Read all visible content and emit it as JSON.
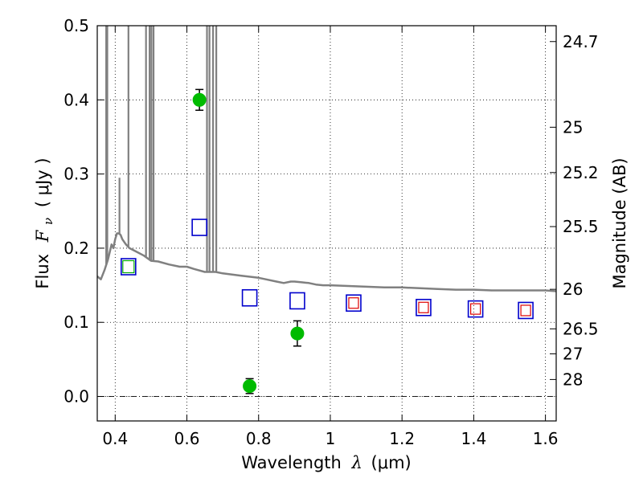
{
  "chart_data": {
    "type": "scatter",
    "title": "",
    "xlabel": "Wavelength",
    "xlabel_symbol": "λ",
    "xlabel_unit": "(μm)",
    "ylabel": "Flux",
    "ylabel_symbol": "F",
    "ylabel_subscript": "ν",
    "ylabel_unit": "( μJy )",
    "y2label": "Magnitude (AB)",
    "xlim": [
      0.35,
      1.63
    ],
    "ylim": [
      -0.033,
      0.5
    ],
    "grid": true,
    "x_ticks": [
      0.4,
      0.6,
      0.8,
      1.0,
      1.2,
      1.4,
      1.6
    ],
    "x_tick_labels": [
      "0.4",
      "0.6",
      "0.8",
      "1",
      "1.2",
      "1.4",
      "1.6"
    ],
    "y_ticks": [
      0.0,
      0.1,
      0.2,
      0.3,
      0.4,
      0.5
    ],
    "y_tick_labels": [
      "0.0",
      "0.1",
      "0.2",
      "0.3",
      "0.4",
      "0.5"
    ],
    "magnitude_ticks": [
      {
        "label": "24.7",
        "flux": 0.4786
      },
      {
        "label": "25",
        "flux": 0.3631
      },
      {
        "label": "25.2",
        "flux": 0.302
      },
      {
        "label": "25.5",
        "flux": 0.2291
      },
      {
        "label": "26",
        "flux": 0.1445
      },
      {
        "label": "26.5",
        "flux": 0.0912
      },
      {
        "label": "27",
        "flux": 0.0575
      },
      {
        "label": "28",
        "flux": 0.0229
      }
    ],
    "colors": {
      "sed": "#808080",
      "observed": "#00bb00",
      "model_box": "#0000cc",
      "inner_green": "#00aa00",
      "inner_red": "#dd0000",
      "zero_line": "#000000"
    },
    "series": [
      {
        "kind": "line",
        "x": [
          0.35,
          0.36,
          0.37,
          0.38,
          0.39,
          0.395,
          0.4,
          0.405,
          0.41,
          0.415,
          0.42,
          0.43,
          0.44,
          0.46,
          0.48,
          0.5,
          0.52,
          0.55,
          0.58,
          0.6,
          0.62,
          0.65,
          0.68,
          0.7,
          0.75,
          0.8,
          0.82,
          0.85,
          0.87,
          0.89,
          0.9,
          0.92,
          0.94,
          0.96,
          0.98,
          1.0,
          1.05,
          1.1,
          1.15,
          1.2,
          1.25,
          1.3,
          1.35,
          1.4,
          1.45,
          1.5,
          1.55,
          1.6,
          1.63
        ],
        "y": [
          0.162,
          0.158,
          0.17,
          0.185,
          0.205,
          0.2,
          0.212,
          0.22,
          0.22,
          0.218,
          0.212,
          0.205,
          0.2,
          0.195,
          0.19,
          0.183,
          0.182,
          0.178,
          0.175,
          0.175,
          0.172,
          0.168,
          0.168,
          0.166,
          0.163,
          0.16,
          0.158,
          0.155,
          0.153,
          0.155,
          0.155,
          0.154,
          0.153,
          0.151,
          0.15,
          0.15,
          0.149,
          0.148,
          0.147,
          0.147,
          0.146,
          0.145,
          0.144,
          0.144,
          0.143,
          0.143,
          0.143,
          0.143,
          0.142
        ]
      },
      {
        "kind": "spikes",
        "lines": [
          {
            "x": 0.375,
            "top": 0.5
          },
          {
            "x": 0.378,
            "top": 0.5
          },
          {
            "x": 0.412,
            "top": 0.295
          },
          {
            "x": 0.437,
            "top": 0.5
          },
          {
            "x": 0.486,
            "top": 0.5
          },
          {
            "x": 0.496,
            "top": 0.5
          },
          {
            "x": 0.501,
            "top": 0.5
          },
          {
            "x": 0.507,
            "top": 0.5
          },
          {
            "x": 0.656,
            "top": 0.5
          },
          {
            "x": 0.663,
            "top": 0.5
          },
          {
            "x": 0.673,
            "top": 0.5
          },
          {
            "x": 0.682,
            "top": 0.5
          }
        ]
      },
      {
        "kind": "points-errorbar",
        "x": [
          0.635,
          0.775,
          0.908
        ],
        "y": [
          0.4,
          0.014,
          0.085
        ],
        "err": [
          0.014,
          0.01,
          0.017
        ]
      },
      {
        "kind": "boxes",
        "x": [
          0.437,
          0.635,
          0.775,
          0.908,
          1.065,
          1.26,
          1.405,
          1.545
        ],
        "y": [
          0.175,
          0.228,
          0.133,
          0.129,
          0.126,
          0.12,
          0.118,
          0.116
        ],
        "inner": [
          "green",
          "none",
          "none",
          "none",
          "red",
          "red",
          "red",
          "red"
        ]
      }
    ]
  }
}
